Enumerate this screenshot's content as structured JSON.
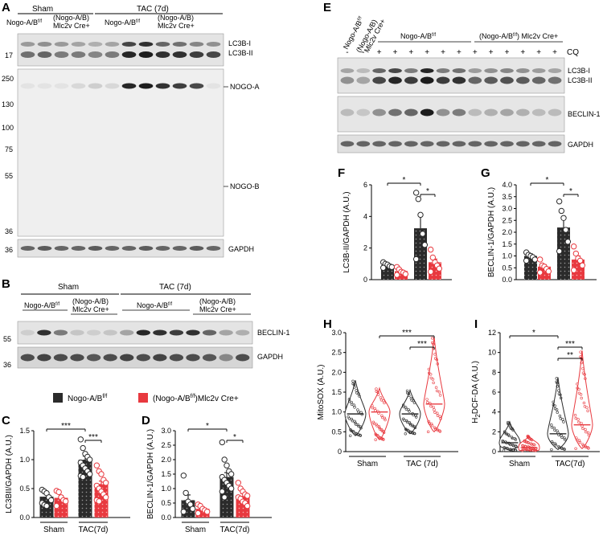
{
  "panels": {
    "A": {
      "letter": "A",
      "groups": {
        "sham": "Sham",
        "tac": "TAC (7d)"
      },
      "geno_ctrl": "Nogo-A/B",
      "geno_ctrl_sup": "f/f",
      "geno_ko_line1": "(Nogo-A/B)",
      "geno_ko_line2": "Mlc2v Cre+",
      "mw_top": [
        "17"
      ],
      "mw_mid": [
        "250",
        "130",
        "100",
        "75",
        "55",
        "36"
      ],
      "mw_bottom": [
        "36"
      ],
      "bands": {
        "lc3b_i": "LC3B-I",
        "lc3b_ii": "LC3B-II",
        "nogo_a": "NOGO-A",
        "nogo_b": "NOGO-B",
        "gapdh": "GAPDH"
      }
    },
    "B": {
      "letter": "B",
      "groups": {
        "sham": "Sham",
        "tac": "TAC (7d)"
      },
      "geno_ctrl": "Nogo-A/B",
      "geno_ctrl_sup": "f/f",
      "geno_ko_line1": "(Nogo-A/B)",
      "geno_ko_line2": "Mlc2v Cre+",
      "mw": [
        "55",
        "36"
      ],
      "bands": {
        "beclin": "BECLIN-1",
        "gapdh": "GAPDH"
      }
    },
    "legend": {
      "ctrl": "Nogo-A/B",
      "ctrl_sup": "f/f",
      "ko_pre": "(Nogo-A/B",
      "ko_sup": "f/f",
      "ko_post": ")Mlc2v Cre+",
      "ctrl_color": "#2b2b2b",
      "ko_color": "#e8393f"
    },
    "E": {
      "letter": "E",
      "col_ctrl": "Nogo-A/B",
      "col_ctrl_sup": "f/f",
      "col_ko_line1": "(Nogo-A/B)",
      "col_ko_line2": "Mlc2v Cre+",
      "geno_ctrl": "Nogo-A/B",
      "geno_ctrl_sup": "f/f",
      "geno_ko": "(Nogo-A/B",
      "geno_ko_sup": "f/f",
      "geno_ko_post": ") Mlc2v Cre+",
      "cq_signs": [
        "-",
        "-",
        "+",
        "+",
        "+",
        "+",
        "+",
        "+",
        "+",
        "+",
        "+",
        "+",
        "+",
        "+"
      ],
      "cq_label": "CQ",
      "bands": {
        "lc3b_i": "LC3B-I",
        "lc3b_ii": "LC3B-II",
        "beclin": "BECLIN-1",
        "gapdh": "GAPDH"
      }
    }
  },
  "chart_data": [
    {
      "panel": "C",
      "type": "bar",
      "ylabel": "LC3BII/GAPDH (A.U.)",
      "ylim": [
        0,
        1.5
      ],
      "yticks": [
        "0.0",
        "0.5",
        "1.0",
        "1.5"
      ],
      "group_labels": [
        "Sham",
        "TAC(7d)"
      ],
      "series": [
        {
          "group": "Sham",
          "genotype": "ctrl",
          "mean": 0.36,
          "sem": 0.05,
          "points": [
            0.48,
            0.45,
            0.42,
            0.35,
            0.3,
            0.25,
            0.22,
            0.2
          ]
        },
        {
          "group": "Sham",
          "genotype": "ko",
          "mean": 0.34,
          "sem": 0.04,
          "points": [
            0.46,
            0.44,
            0.35,
            0.3,
            0.28,
            0.2
          ]
        },
        {
          "group": "TAC(7d)",
          "genotype": "ctrl",
          "mean": 1.0,
          "sem": 0.06,
          "points": [
            1.35,
            1.2,
            1.1,
            1.05,
            1.0,
            0.95,
            0.9,
            0.85,
            0.8,
            0.75,
            0.72,
            0.7
          ]
        },
        {
          "group": "TAC(7d)",
          "genotype": "ko",
          "mean": 0.58,
          "sem": 0.05,
          "points": [
            0.9,
            0.8,
            0.75,
            0.65,
            0.6,
            0.55,
            0.5,
            0.45,
            0.4,
            0.35,
            0.3,
            0.28
          ]
        }
      ],
      "sig": [
        {
          "from": 0,
          "to": 2,
          "label": "***"
        },
        {
          "from": 2,
          "to": 3,
          "label": "***"
        }
      ]
    },
    {
      "panel": "D",
      "type": "bar",
      "ylabel": "BECLIN-1/GAPDH (A.U.)",
      "ylim": [
        0,
        3.0
      ],
      "yticks": [
        "0.0",
        "0.5",
        "1.0",
        "1.5",
        "2.0",
        "2.5",
        "3.0"
      ],
      "group_labels": [
        "Sham",
        "TAC(7d)"
      ],
      "series": [
        {
          "group": "Sham",
          "genotype": "ctrl",
          "mean": 0.6,
          "sem": 0.18,
          "points": [
            1.45,
            0.85,
            0.55,
            0.45,
            0.3,
            0.2
          ]
        },
        {
          "group": "Sham",
          "genotype": "ko",
          "mean": 0.3,
          "sem": 0.06,
          "points": [
            0.45,
            0.4,
            0.3,
            0.25,
            0.2,
            0.15
          ]
        },
        {
          "group": "TAC(7d)",
          "genotype": "ctrl",
          "mean": 1.4,
          "sem": 0.15,
          "points": [
            2.6,
            2.0,
            1.8,
            1.6,
            1.5,
            1.4,
            1.3,
            1.2,
            1.1,
            1.0,
            0.9,
            0.7
          ]
        },
        {
          "group": "TAC(7d)",
          "genotype": "ko",
          "mean": 0.75,
          "sem": 0.08,
          "points": [
            1.2,
            1.0,
            0.9,
            0.8,
            0.75,
            0.7,
            0.65,
            0.55,
            0.5,
            0.4
          ]
        }
      ],
      "sig": [
        {
          "from": 0,
          "to": 2,
          "label": "*"
        },
        {
          "from": 2,
          "to": 3,
          "label": "*"
        }
      ]
    },
    {
      "panel": "F",
      "type": "bar",
      "ylabel": "LC3B-II/GAPDH (A.U.)",
      "ylim": [
        0,
        6
      ],
      "yticks": [
        "0",
        "2",
        "4",
        "6"
      ],
      "group_labels": [],
      "series": [
        {
          "genotype": "ctrl",
          "mean": 0.9,
          "sem": 0.07,
          "points": [
            1.1,
            1.0,
            0.95,
            0.85,
            0.8,
            0.75
          ]
        },
        {
          "genotype": "ko",
          "mean": 0.55,
          "sem": 0.06,
          "points": [
            0.8,
            0.65,
            0.5,
            0.45,
            0.35,
            0.3
          ]
        },
        {
          "genotype": "ctrl",
          "mean": 3.25,
          "sem": 0.9,
          "points": [
            5.5,
            5.1,
            4.1,
            2.9,
            2.2,
            1.3
          ]
        },
        {
          "genotype": "ko",
          "mean": 1.1,
          "sem": 0.2,
          "points": [
            1.9,
            1.4,
            1.1,
            0.9,
            0.7,
            0.5
          ]
        }
      ],
      "sig": [
        {
          "from": 0,
          "to": 2,
          "label": "*"
        },
        {
          "from": 2,
          "to": 3,
          "label": "*"
        }
      ]
    },
    {
      "panel": "G",
      "type": "bar",
      "ylabel": "BECLIN-1/GAPDH (A.U.)",
      "ylim": [
        0,
        4.0
      ],
      "yticks": [
        "0.0",
        "0.5",
        "1.0",
        "1.5",
        "2.0",
        "2.5",
        "3.0",
        "3.5",
        "4.0"
      ],
      "group_labels": [],
      "series": [
        {
          "genotype": "ctrl",
          "mean": 1.0,
          "sem": 0.08,
          "points": [
            1.15,
            1.05,
            1.0,
            0.95,
            0.85,
            0.8
          ]
        },
        {
          "genotype": "ko",
          "mean": 0.55,
          "sem": 0.08,
          "points": [
            0.85,
            0.6,
            0.55,
            0.45,
            0.35,
            0.3
          ]
        },
        {
          "genotype": "ctrl",
          "mean": 2.2,
          "sem": 0.35,
          "points": [
            3.3,
            2.9,
            2.6,
            2.1,
            1.6,
            1.2
          ]
        },
        {
          "genotype": "ko",
          "mean": 0.85,
          "sem": 0.15,
          "points": [
            1.4,
            1.1,
            0.9,
            0.8,
            0.6,
            0.4
          ]
        }
      ],
      "sig": [
        {
          "from": 0,
          "to": 2,
          "label": "*"
        },
        {
          "from": 2,
          "to": 3,
          "label": "*"
        }
      ]
    },
    {
      "panel": "H",
      "type": "violin",
      "ylabel": "MitoSOX (A.U.)",
      "ylim": [
        0,
        3.0
      ],
      "yticks": [
        "0",
        "0.5",
        "1.0",
        "1.5",
        "2.0",
        "2.5",
        "3.0"
      ],
      "group_labels": [
        "Sham",
        "TAC (7d)"
      ],
      "series": [
        {
          "group": "Sham",
          "genotype": "ctrl",
          "median": 0.95,
          "min": 0.4,
          "max": 1.8
        },
        {
          "group": "Sham",
          "genotype": "ko",
          "median": 1.0,
          "min": 0.3,
          "max": 1.6
        },
        {
          "group": "TAC (7d)",
          "genotype": "ctrl",
          "median": 0.95,
          "min": 0.45,
          "max": 1.55
        },
        {
          "group": "TAC (7d)",
          "genotype": "ko",
          "median": 1.2,
          "min": 0.5,
          "max": 2.9
        }
      ],
      "sig": [
        {
          "from": 1,
          "to": 3,
          "label": "***"
        },
        {
          "from": 2,
          "to": 3,
          "label": "***"
        }
      ]
    },
    {
      "panel": "I",
      "type": "violin",
      "ylabel_pre": "H",
      "ylabel_sub": "2",
      "ylabel_post": "DCF-DA (A.U.)",
      "ylim": [
        0,
        12
      ],
      "yticks": [
        "0",
        "2",
        "4",
        "6",
        "8",
        "10",
        "12"
      ],
      "group_labels": [
        "Sham",
        "TAC(7d)"
      ],
      "series": [
        {
          "group": "Sham",
          "genotype": "ctrl",
          "median": 0.9,
          "min": 0.1,
          "max": 3.0
        },
        {
          "group": "Sham",
          "genotype": "ko",
          "median": 0.4,
          "min": 0.1,
          "max": 1.6
        },
        {
          "group": "TAC(7d)",
          "genotype": "ctrl",
          "median": 1.8,
          "min": 0.2,
          "max": 7.5
        },
        {
          "group": "TAC(7d)",
          "genotype": "ko",
          "median": 2.7,
          "min": 0.3,
          "max": 10.2
        }
      ],
      "sig": [
        {
          "from": 0,
          "to": 2,
          "label": "*"
        },
        {
          "from": 2,
          "to": 3,
          "label": "***",
          "to_actual": 3
        },
        {
          "from": 2,
          "to": 3,
          "label": "**"
        }
      ]
    }
  ]
}
